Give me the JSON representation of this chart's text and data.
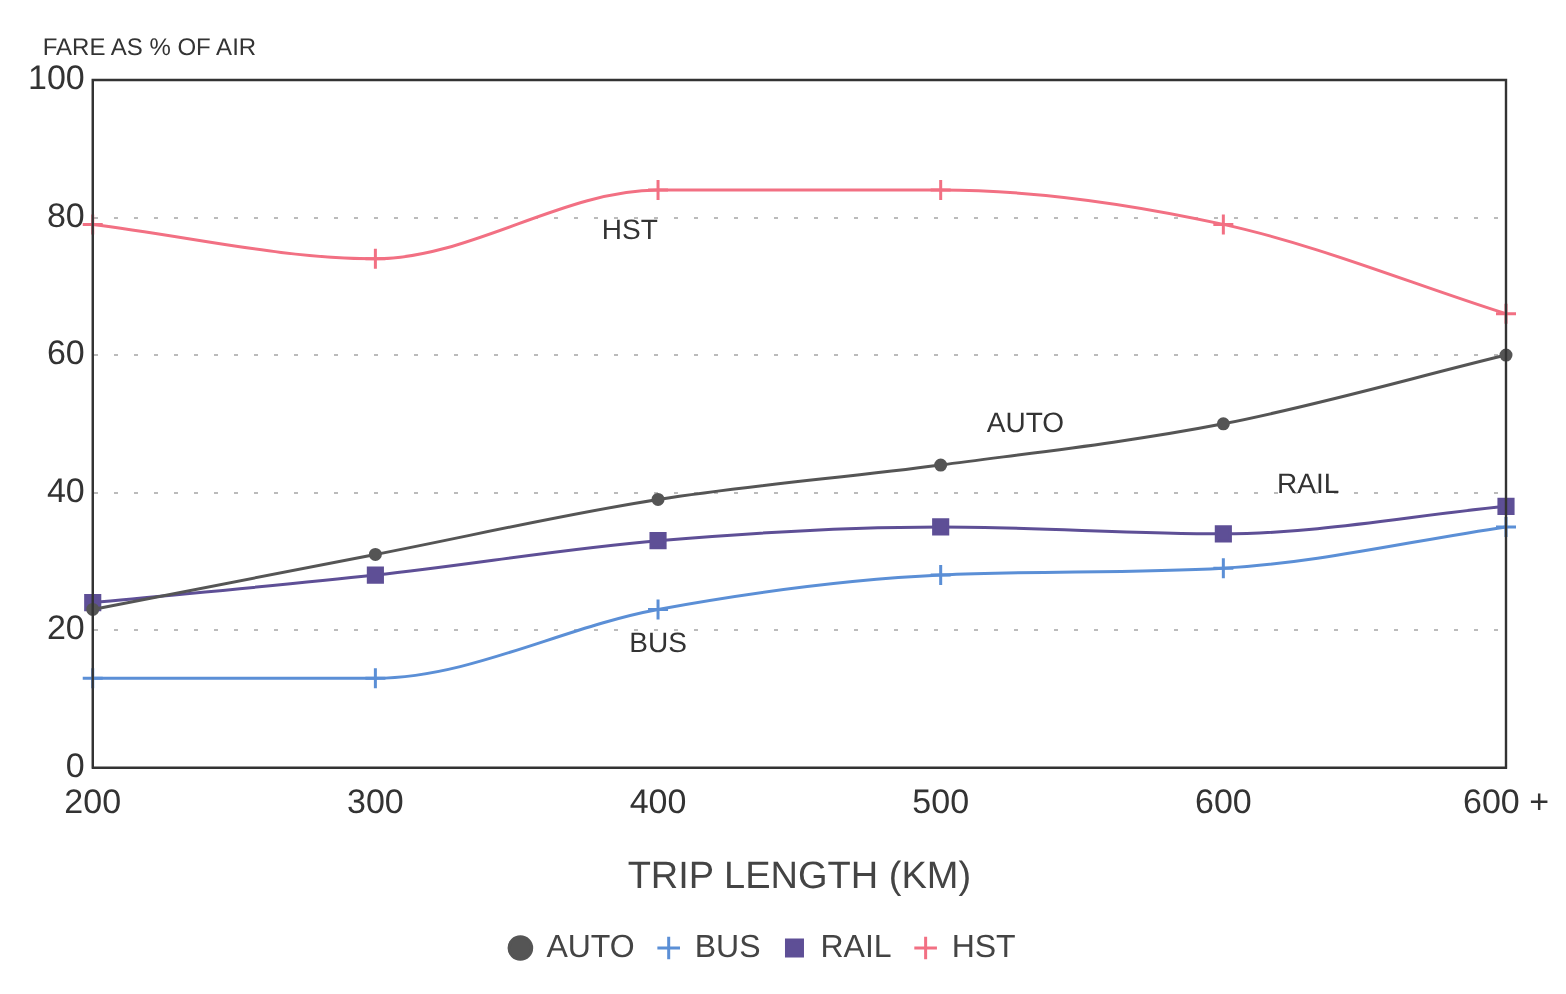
{
  "chart_data": {
    "type": "line",
    "xlabel": "TRIP LENGTH (KM)",
    "ylabel": "FARE AS % OF AIR",
    "categories": [
      "200",
      "300",
      "400",
      "500",
      "600",
      "600 +"
    ],
    "ylim": [
      0,
      100
    ],
    "yticks": [
      0,
      20,
      40,
      60,
      80,
      100
    ],
    "grid": "y",
    "legend": "bottom",
    "line_style": "solid",
    "series": [
      {
        "name": "AUTO",
        "color": "#555555",
        "marker": "circle",
        "values": [
          23,
          31,
          39,
          44,
          50,
          60
        ]
      },
      {
        "name": "BUS",
        "color": "#5b8fd6",
        "marker": "cross",
        "values": [
          13,
          13,
          23,
          28,
          29,
          35
        ]
      },
      {
        "name": "RAIL",
        "color": "#5e4f96",
        "marker": "square",
        "values": [
          24,
          28,
          33,
          35,
          34,
          38
        ]
      },
      {
        "name": "HST",
        "color": "#f27083",
        "marker": "cross",
        "values": [
          79,
          74,
          84,
          84,
          79,
          66
        ]
      }
    ],
    "annotations": [
      "HST",
      "AUTO",
      "RAIL",
      "BUS"
    ]
  }
}
